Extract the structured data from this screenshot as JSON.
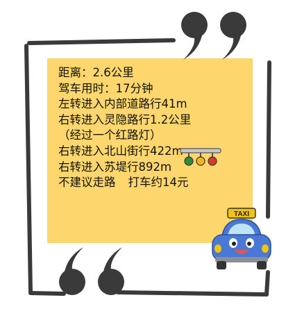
{
  "note": {
    "lines": [
      "距离：2.6公里",
      "驾车用时：17分钟",
      "左转进入内部道路行41m",
      "右转进入灵隐路行1.2公里",
      "（经过一个红路灯）",
      "右转进入北山街行422m",
      "右转进入苏堤行892m"
    ],
    "last_line_left": "不建议走路",
    "last_line_right": "打车约14元"
  },
  "taxi_sign": "TAXI",
  "colors": {
    "note_bg": "#fdd76d",
    "frame": "#3a3a3a",
    "taxi_body": "#4a78d6",
    "taxi_sign": "#f1c40f"
  },
  "icons": [
    "double-quote-open-icon",
    "double-quote-close-icon",
    "traffic-light-icon",
    "taxi-icon"
  ]
}
